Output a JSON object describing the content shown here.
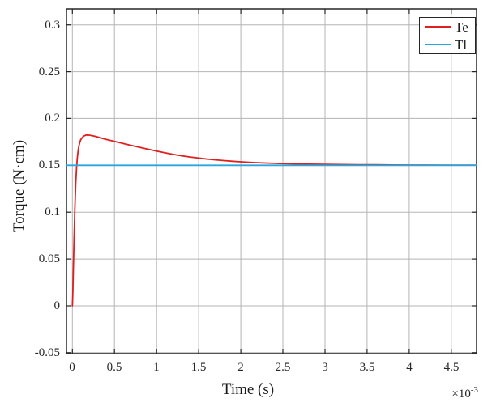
{
  "figure": {
    "background": "#ffffff",
    "axes_color": "#262626",
    "grid_color": "#b5b5b5",
    "tick_color": "#262626"
  },
  "chart_data": {
    "type": "line",
    "title": "",
    "xlabel": "Time (s)",
    "ylabel": "Torque (N·cm)",
    "x_multiplier": {
      "base": "×10",
      "exp": "-3"
    },
    "x_units_note": "x values in units of 1e-3 s",
    "xlim": [
      -0.07,
      4.8
    ],
    "ylim": [
      -0.051,
      0.317
    ],
    "grid": true,
    "legend_position": "top-right",
    "xtick_values": [
      0,
      0.5,
      1,
      1.5,
      2,
      2.5,
      3,
      3.5,
      4,
      4.5
    ],
    "xtick_labels": [
      "0",
      "0.5",
      "1",
      "1.5",
      "2",
      "2.5",
      "3",
      "3.5",
      "4",
      "4.5"
    ],
    "ytick_values": [
      -0.05,
      0,
      0.05,
      0.1,
      0.15,
      0.2,
      0.25,
      0.3
    ],
    "ytick_labels": [
      "-0.05",
      "0",
      "0.05",
      "0.1",
      "0.15",
      "0.2",
      "0.25",
      "0.3"
    ],
    "series": [
      {
        "name": "Te",
        "color": "#dd2020",
        "width": 1.8,
        "points": [
          [
            0,
            0
          ],
          [
            0.005,
            0.012
          ],
          [
            0.012,
            0.04
          ],
          [
            0.02,
            0.072
          ],
          [
            0.03,
            0.105
          ],
          [
            0.04,
            0.13
          ],
          [
            0.05,
            0.148
          ],
          [
            0.06,
            0.159
          ],
          [
            0.07,
            0.1665
          ],
          [
            0.08,
            0.1715
          ],
          [
            0.09,
            0.175
          ],
          [
            0.1,
            0.1775
          ],
          [
            0.12,
            0.18
          ],
          [
            0.14,
            0.1815
          ],
          [
            0.16,
            0.1822
          ],
          [
            0.18,
            0.1824
          ],
          [
            0.2,
            0.1822
          ],
          [
            0.24,
            0.1816
          ],
          [
            0.28,
            0.1807
          ],
          [
            0.32,
            0.1797
          ],
          [
            0.36,
            0.1787
          ],
          [
            0.4,
            0.1777
          ],
          [
            0.45,
            0.1766
          ],
          [
            0.5,
            0.1755
          ],
          [
            0.6,
            0.1734
          ],
          [
            0.7,
            0.1713
          ],
          [
            0.8,
            0.1692
          ],
          [
            0.9,
            0.1671
          ],
          [
            1.0,
            0.1651
          ],
          [
            1.1,
            0.1633
          ],
          [
            1.2,
            0.1616
          ],
          [
            1.3,
            0.1601
          ],
          [
            1.4,
            0.1588
          ],
          [
            1.5,
            0.1577
          ],
          [
            1.6,
            0.1567
          ],
          [
            1.7,
            0.1558
          ],
          [
            1.8,
            0.155
          ],
          [
            1.9,
            0.1543
          ],
          [
            2.0,
            0.1537
          ],
          [
            2.1,
            0.1532
          ],
          [
            2.2,
            0.1528
          ],
          [
            2.3,
            0.1524
          ],
          [
            2.4,
            0.1521
          ],
          [
            2.5,
            0.1518
          ],
          [
            2.6,
            0.1516
          ],
          [
            2.7,
            0.1514
          ],
          [
            2.8,
            0.1512
          ],
          [
            2.9,
            0.1511
          ],
          [
            3.0,
            0.151
          ],
          [
            3.2,
            0.1508
          ],
          [
            3.4,
            0.1506
          ],
          [
            3.6,
            0.1505
          ],
          [
            3.8,
            0.1504
          ],
          [
            4.0,
            0.1503
          ],
          [
            4.2,
            0.1503
          ],
          [
            4.4,
            0.1502
          ],
          [
            4.6,
            0.1502
          ],
          [
            4.8,
            0.1502
          ]
        ]
      },
      {
        "name": "Tl",
        "color": "#29a8e0",
        "width": 1.8,
        "points": [
          [
            -0.07,
            0.15
          ],
          [
            4.8,
            0.15
          ]
        ]
      }
    ]
  }
}
